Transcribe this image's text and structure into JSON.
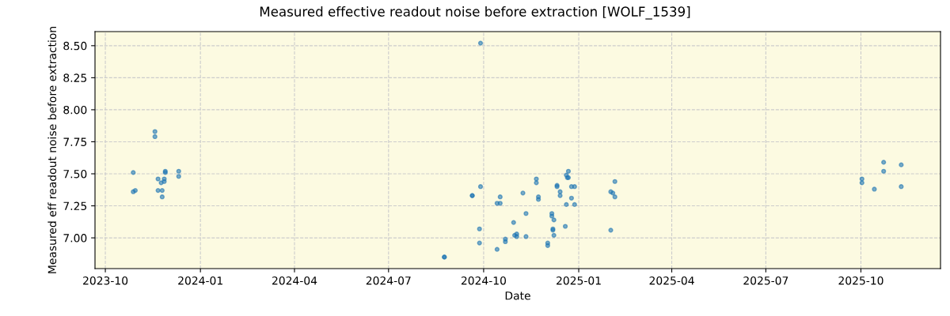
{
  "chart_data": {
    "type": "scatter",
    "title": "Measured effective readout noise before extraction [WOLF_1539]",
    "xlabel": "Date",
    "ylabel": "Measured eff readout noise before extraction",
    "x": [
      "2023-10-28",
      "2023-10-28",
      "2023-10-30",
      "2023-11-18",
      "2023-11-18",
      "2023-11-21",
      "2023-11-21",
      "2023-11-24",
      "2023-11-25",
      "2023-11-25",
      "2023-11-27",
      "2023-11-27",
      "2023-11-28",
      "2023-11-28",
      "2023-12-11",
      "2023-12-11",
      "2024-08-24",
      "2024-08-24",
      "2024-09-20",
      "2024-09-20",
      "2024-09-27",
      "2024-09-27",
      "2024-09-28",
      "2024-09-28",
      "2024-10-14",
      "2024-10-14",
      "2024-10-17",
      "2024-10-17",
      "2024-10-22",
      "2024-10-22",
      "2024-10-30",
      "2024-10-31",
      "2024-11-02",
      "2024-11-02",
      "2024-11-08",
      "2024-11-11",
      "2024-11-11",
      "2024-11-21",
      "2024-11-21",
      "2024-11-23",
      "2024-11-23",
      "2024-12-02",
      "2024-12-02",
      "2024-12-06",
      "2024-12-06",
      "2024-12-08",
      "2024-12-07",
      "2024-12-07",
      "2024-12-08",
      "2024-12-11",
      "2024-12-11",
      "2024-12-14",
      "2024-12-14",
      "2024-12-19",
      "2024-12-20",
      "2024-12-20",
      "2024-12-21",
      "2024-12-22",
      "2024-12-22",
      "2024-12-25",
      "2024-12-28",
      "2024-12-25",
      "2024-12-28",
      "2025-02-01",
      "2025-02-03",
      "2025-02-05",
      "2025-02-05",
      "2025-02-01",
      "2025-10-02",
      "2025-10-02",
      "2025-10-14",
      "2025-10-23",
      "2025-10-23",
      "2025-11-09",
      "2025-11-09"
    ],
    "series": [
      {
        "color": "#1f77b4",
        "values": [
          7.51,
          7.36,
          7.37,
          7.83,
          7.79,
          7.46,
          7.37,
          7.43,
          7.37,
          7.32,
          7.46,
          7.44,
          7.52,
          7.51,
          7.52,
          7.48,
          6.85,
          6.85,
          7.33,
          7.33,
          7.07,
          6.96,
          8.52,
          7.4,
          6.91,
          7.27,
          7.27,
          7.32,
          6.99,
          6.97,
          7.12,
          7.02,
          7.01,
          7.03,
          7.35,
          7.19,
          7.01,
          7.46,
          7.43,
          7.32,
          7.3,
          6.96,
          6.94,
          7.19,
          7.17,
          7.14,
          7.07,
          7.06,
          7.02,
          7.41,
          7.4,
          7.36,
          7.33,
          7.09,
          7.26,
          7.49,
          7.47,
          7.52,
          7.47,
          7.4,
          7.4,
          7.31,
          7.26,
          7.36,
          7.35,
          7.44,
          7.32,
          7.06,
          7.46,
          7.43,
          7.38,
          7.59,
          7.52,
          7.57,
          7.4
        ]
      }
    ],
    "xlim": [
      "2023-09-21",
      "2025-12-17"
    ],
    "ylim": [
      6.76,
      8.61
    ],
    "xticks": [
      "2023-10",
      "2024-01",
      "2024-04",
      "2024-07",
      "2024-10",
      "2025-01",
      "2025-04",
      "2025-07",
      "2025-10"
    ],
    "yticks": [
      {
        "value": 7.0,
        "label": "7.00"
      },
      {
        "value": 7.25,
        "label": "7.25"
      },
      {
        "value": 7.5,
        "label": "7.50"
      },
      {
        "value": 7.75,
        "label": "7.75"
      },
      {
        "value": 8.0,
        "label": "8.00"
      },
      {
        "value": 8.25,
        "label": "8.25"
      },
      {
        "value": 8.5,
        "label": "8.50"
      }
    ],
    "grid": true,
    "marker": "circle"
  }
}
